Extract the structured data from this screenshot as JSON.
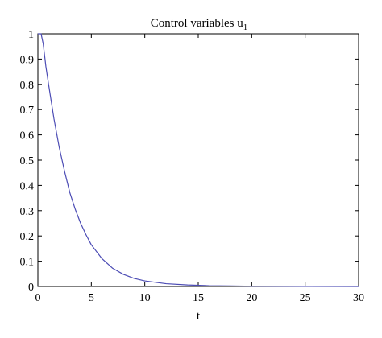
{
  "chart_data": {
    "type": "line",
    "title": "Control variables u",
    "title_subscript": "1",
    "xlabel": "t",
    "ylabel": "",
    "xlim": [
      0,
      30
    ],
    "ylim": [
      0,
      1
    ],
    "x_ticks": [
      0,
      5,
      10,
      15,
      20,
      25,
      30
    ],
    "y_ticks": [
      0,
      0.1,
      0.2,
      0.3,
      0.4,
      0.5,
      0.6,
      0.7,
      0.8,
      0.9,
      1
    ],
    "x_tick_labels": [
      "0",
      "5",
      "10",
      "15",
      "20",
      "25",
      "30"
    ],
    "y_tick_labels": [
      "0",
      "0.1",
      "0.2",
      "0.3",
      "0.4",
      "0.5",
      "0.6",
      "0.7",
      "0.8",
      "0.9",
      "1"
    ],
    "grid": false,
    "legend": "none",
    "series": [
      {
        "color": "#4b4bb4",
        "x": [
          0,
          0.3,
          0.5,
          0.75,
          1,
          1.5,
          2,
          2.5,
          3,
          3.5,
          4,
          4.5,
          5,
          6,
          7,
          8,
          9,
          10,
          12,
          14,
          16,
          18,
          20,
          25,
          30
        ],
        "y": [
          1,
          1,
          0.96,
          0.87,
          0.8,
          0.665,
          0.55,
          0.455,
          0.37,
          0.305,
          0.25,
          0.205,
          0.165,
          0.11,
          0.072,
          0.048,
          0.032,
          0.022,
          0.011,
          0.006,
          0.003,
          0.002,
          0.001,
          0.0003,
          0.0001
        ]
      }
    ]
  }
}
